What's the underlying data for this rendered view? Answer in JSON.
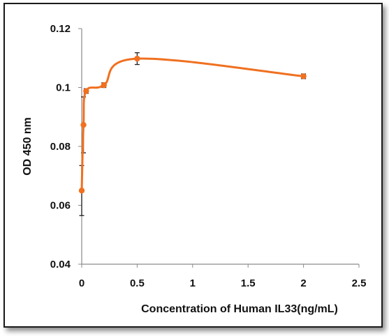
{
  "chart_data": {
    "type": "line",
    "title": "",
    "xlabel": "Concentration of Human IL33(ng/mL)",
    "ylabel": "OD 450 nm",
    "xlim": [
      0,
      2.5
    ],
    "ylim": [
      0.04,
      0.12
    ],
    "x_ticks": [
      "0",
      "0.5",
      "1",
      "1.5",
      "2",
      "2.5"
    ],
    "y_ticks": [
      "0.04",
      "0.06",
      "0.08",
      "0.1",
      "0.12"
    ],
    "grid": false,
    "legend": "none",
    "smooth": true,
    "color": "#f07020",
    "series": [
      {
        "x": [
          0,
          0.016,
          0.04,
          0.2,
          0.5,
          2
        ],
        "y": [
          0.065,
          0.0873,
          0.0988,
          0.1008,
          0.1098,
          0.1038
        ],
        "err": [
          0.0085,
          0.0095,
          0.0008,
          0.0008,
          0.002,
          0.0008
        ]
      }
    ]
  }
}
